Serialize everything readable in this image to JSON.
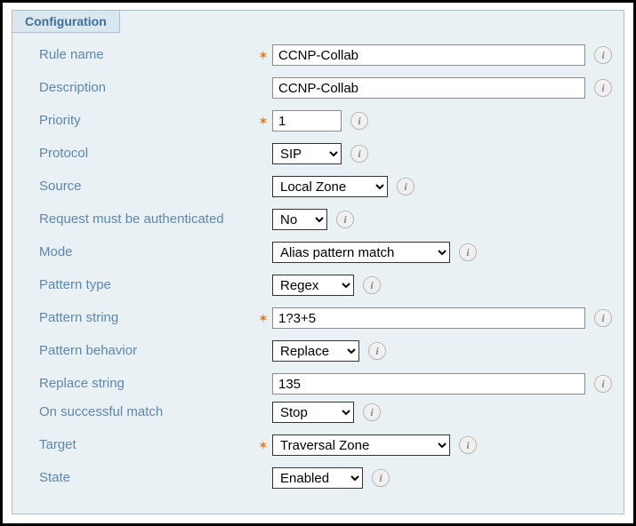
{
  "panel": {
    "title": "Configuration"
  },
  "labels": {
    "rule_name": "Rule name",
    "description": "Description",
    "priority": "Priority",
    "protocol": "Protocol",
    "source": "Source",
    "request_auth": "Request must be authenticated",
    "mode": "Mode",
    "pattern_type": "Pattern type",
    "pattern_string": "Pattern string",
    "pattern_behavior": "Pattern behavior",
    "replace_string": "Replace string",
    "on_success": "On successful match",
    "target": "Target",
    "state": "State"
  },
  "values": {
    "rule_name": "CCNP-Collab",
    "description": "CCNP-Collab",
    "priority": "1",
    "protocol": "SIP",
    "source": "Local Zone",
    "request_auth": "No",
    "mode": "Alias pattern match",
    "pattern_type": "Regex",
    "pattern_string": "1?3+5",
    "pattern_behavior": "Replace",
    "replace_string": "135",
    "on_success": "Stop",
    "target": "Traversal Zone",
    "state": "Enabled"
  },
  "select_widths": {
    "protocol": 78,
    "source": 130,
    "request_auth": 62,
    "mode": 200,
    "pattern_type": 92,
    "pattern_behavior": 98,
    "on_success": 92,
    "target": 200,
    "state": 102
  },
  "colors": {
    "label": "#5d86ad",
    "panel_bg": "#eaf1f5",
    "legend_bg": "#dbe7ef",
    "border": "#a9bfd2",
    "required": "#e67817"
  },
  "required": {
    "rule_name": true,
    "priority": true,
    "pattern_string": true,
    "target": true
  },
  "info_glyph": "i"
}
